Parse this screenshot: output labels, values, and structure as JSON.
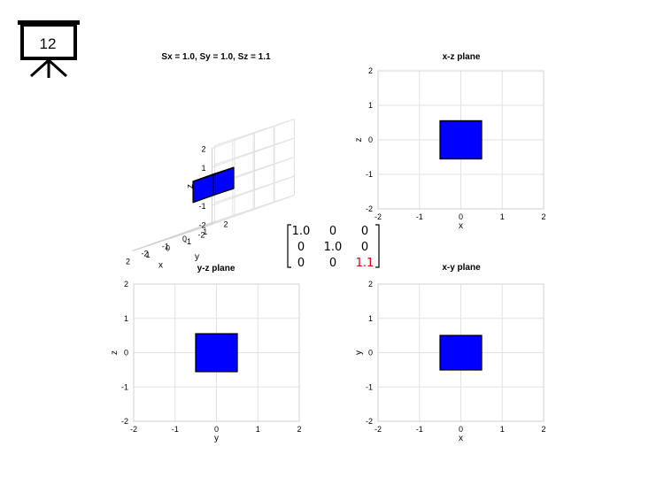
{
  "slide": {
    "number": "12"
  },
  "colors": {
    "cube": "#0000ff",
    "highlight": "#d40000",
    "grid": "#e2e2e2"
  },
  "chart_data": [
    {
      "type": "3d-box",
      "title": "Sx = 1.0, Sy = 1.0, Sz = 1.1",
      "xlabel": "x",
      "ylabel": "y",
      "zlabel": "z",
      "xlim": [
        -2,
        2
      ],
      "ylim": [
        -2,
        2
      ],
      "zlim": [
        -2,
        2
      ],
      "xticks": [
        "-1",
        "0",
        "1",
        "2"
      ],
      "yticks": [
        "-2",
        "-1",
        "0",
        "1",
        "2"
      ],
      "zticks": [
        "2",
        "1",
        "0",
        "-1",
        "-2"
      ],
      "extra_tick": "-2",
      "box": {
        "x": [
          -0.5,
          0.5
        ],
        "y": [
          -0.5,
          0.5
        ],
        "z": [
          -0.55,
          0.55
        ]
      }
    },
    {
      "type": "rect",
      "title": "x-z plane",
      "xlabel": "x",
      "ylabel": "z",
      "xlim": [
        -2,
        2
      ],
      "ylim": [
        -2,
        2
      ],
      "xticks": [
        "-2",
        "-1",
        "0",
        "1",
        "2"
      ],
      "yticks": [
        "2",
        "1",
        "0",
        "-1",
        "-2"
      ],
      "rect": {
        "x": [
          -0.5,
          0.5
        ],
        "y": [
          -0.55,
          0.55
        ]
      }
    },
    {
      "type": "rect",
      "title": "y-z plane",
      "xlabel": "y",
      "ylabel": "z",
      "xlim": [
        -2,
        2
      ],
      "ylim": [
        -2,
        2
      ],
      "xticks": [
        "-2",
        "-1",
        "0",
        "1",
        "2"
      ],
      "yticks": [
        "2",
        "1",
        "0",
        "-1",
        "-2"
      ],
      "rect": {
        "x": [
          -0.5,
          0.5
        ],
        "y": [
          -0.55,
          0.55
        ]
      }
    },
    {
      "type": "rect",
      "title": "x-y plane",
      "xlabel": "x",
      "ylabel": "y",
      "xlim": [
        -2,
        2
      ],
      "ylim": [
        -2,
        2
      ],
      "xticks": [
        "-2",
        "-1",
        "0",
        "1",
        "2"
      ],
      "yticks": [
        "2",
        "1",
        "0",
        "-1",
        "-2"
      ],
      "rect": {
        "x": [
          -0.5,
          0.5
        ],
        "y": [
          -0.5,
          0.5
        ]
      }
    }
  ],
  "matrix": {
    "rows": [
      [
        "1.0",
        "0",
        "0"
      ],
      [
        "0",
        "1.0",
        "0"
      ],
      [
        "0",
        "0",
        "1.1"
      ]
    ],
    "highlight": [
      2,
      2
    ]
  }
}
